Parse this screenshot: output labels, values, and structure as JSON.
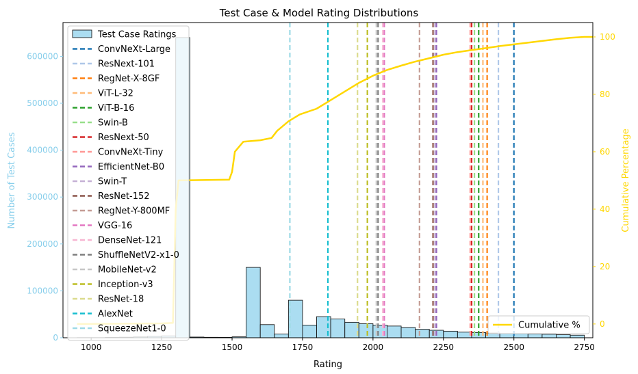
{
  "chart_data": {
    "type": "bar",
    "title": "Test Case & Model Rating Distributions",
    "xlabel": "Rating",
    "ylabel": "Number of Test Cases",
    "y2label": "Cumulative Percentage",
    "xlim": [
      900,
      2780
    ],
    "ylim": [
      0,
      672000
    ],
    "y2lim": [
      -4.8,
      105
    ],
    "xticks": [
      1000,
      1250,
      1500,
      1750,
      2000,
      2250,
      2500,
      2750
    ],
    "yticks": [
      0,
      100000,
      200000,
      300000,
      400000,
      500000,
      600000
    ],
    "y2ticks": [
      0,
      20,
      40,
      60,
      80,
      100
    ],
    "histogram": {
      "name": "Test Case Ratings",
      "color": "#87ceeb",
      "bin_edges": [
        950,
        1000,
        1050,
        1100,
        1150,
        1200,
        1250,
        1300,
        1350,
        1400,
        1450,
        1500,
        1550,
        1600,
        1650,
        1700,
        1750,
        1800,
        1850,
        1900,
        1950,
        2000,
        2050,
        2100,
        2150,
        2200,
        2250,
        2300,
        2350,
        2400,
        2450,
        2500,
        2550,
        2600,
        2650,
        2700,
        2750
      ],
      "counts": [
        300,
        300,
        800,
        1200,
        1800,
        3000,
        4000,
        640000,
        1500,
        1000,
        800,
        2000,
        150000,
        28000,
        8000,
        80000,
        27000,
        45000,
        40000,
        33000,
        30000,
        27000,
        25000,
        22000,
        18000,
        16000,
        14000,
        12000,
        11000,
        10000,
        9000,
        8500,
        8000,
        7500,
        6500,
        5500
      ]
    },
    "cumulative": {
      "name": "Cumulative %",
      "color": "#ffd700",
      "x": [
        950,
        1250,
        1290,
        1300,
        1310,
        1490,
        1500,
        1510,
        1540,
        1600,
        1640,
        1660,
        1700,
        1740,
        1800,
        1850,
        1900,
        1950,
        2000,
        2050,
        2100,
        2150,
        2200,
        2250,
        2300,
        2350,
        2400,
        2450,
        2500,
        2550,
        2600,
        2650,
        2700,
        2750,
        2780
      ],
      "y": [
        0,
        0.2,
        0.4,
        40,
        50,
        50.3,
        53,
        60,
        63.5,
        64,
        64.8,
        67.3,
        70.6,
        73,
        75,
        78,
        81,
        84,
        86.5,
        88.5,
        90,
        91.4,
        92.6,
        93.8,
        94.7,
        95.4,
        96.1,
        96.8,
        97.4,
        98,
        98.6,
        99.2,
        99.7,
        100,
        100
      ]
    },
    "models": [
      {
        "name": "ConvNeXt-Large",
        "rating": 2500,
        "color": "#1f77b4"
      },
      {
        "name": "ResNext-101",
        "rating": 2445,
        "color": "#aec7e8"
      },
      {
        "name": "RegNet-X-8GF",
        "rating": 2405,
        "color": "#ff7f0e"
      },
      {
        "name": "ViT-L-32",
        "rating": 2390,
        "color": "#ffbb78"
      },
      {
        "name": "ViT-B-16",
        "rating": 2375,
        "color": "#2ca02c"
      },
      {
        "name": "Swin-B",
        "rating": 2360,
        "color": "#98df8a"
      },
      {
        "name": "ResNext-50",
        "rating": 2350,
        "color": "#d62728"
      },
      {
        "name": "ConvNeXt-Tiny",
        "rating": 2345,
        "color": "#ff9896"
      },
      {
        "name": "EfficientNet-B0",
        "rating": 2225,
        "color": "#9467bd"
      },
      {
        "name": "Swin-T",
        "rating": 2220,
        "color": "#c5b0d5"
      },
      {
        "name": "ResNet-152",
        "rating": 2213,
        "color": "#8c564b"
      },
      {
        "name": "RegNet-Y-800MF",
        "rating": 2165,
        "color": "#c49c94"
      },
      {
        "name": "VGG-16",
        "rating": 2040,
        "color": "#e377c2"
      },
      {
        "name": "DenseNet-121",
        "rating": 2035,
        "color": "#f7b6d2"
      },
      {
        "name": "ShuffleNetV2-x1-0",
        "rating": 2018,
        "color": "#7f7f7f"
      },
      {
        "name": "MobileNet-v2",
        "rating": 2012,
        "color": "#c7c7c7"
      },
      {
        "name": "Inception-v3",
        "rating": 1980,
        "color": "#bcbd22"
      },
      {
        "name": "ResNet-18",
        "rating": 1945,
        "color": "#dbdb8d"
      },
      {
        "name": "AlexNet",
        "rating": 1840,
        "color": "#17becf"
      },
      {
        "name": "SqueezeNet1-0",
        "rating": 1705,
        "color": "#9edae5"
      }
    ],
    "legend_main_position": "upper-left",
    "legend_cumulative_position": "lower-right",
    "grid": false
  }
}
